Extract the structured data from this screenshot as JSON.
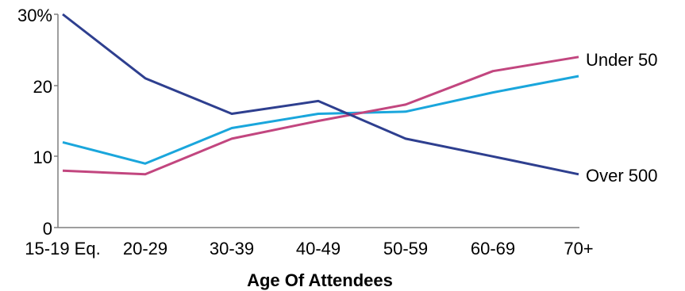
{
  "chart_data": {
    "type": "line",
    "xlabel": "Age Of Attendees",
    "categories": [
      "15-19 Eq.",
      "20-29",
      "30-39",
      "40-49",
      "50-59",
      "60-69",
      "70+"
    ],
    "ylim": [
      0,
      30
    ],
    "yticks": [
      0,
      10,
      20,
      30
    ],
    "ytick_labels": [
      "0",
      "10",
      "20",
      "30%"
    ],
    "grid": false,
    "series": [
      {
        "name": "Over 500",
        "color": "#2e3f8f",
        "values": [
          30,
          21,
          16,
          17.8,
          12.5,
          10,
          7.5
        ]
      },
      {
        "name": "Under 50",
        "color": "#c2467f",
        "values": [
          8,
          7.5,
          12.5,
          15,
          17.3,
          22,
          24
        ]
      },
      {
        "name": "",
        "color": "#1aa6dc",
        "values": [
          12,
          9,
          14,
          16,
          16.3,
          19,
          21.3
        ]
      }
    ]
  }
}
